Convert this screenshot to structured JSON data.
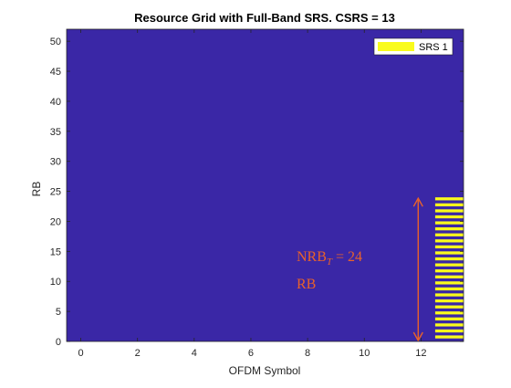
{
  "chart_data": {
    "type": "heatmap",
    "title": "Resource Grid with Full-Band SRS. CSRS = 13",
    "xlabel": "OFDM Symbol",
    "ylabel": "RB",
    "xlim": [
      -0.5,
      13.5
    ],
    "ylim": [
      0,
      52
    ],
    "x_ticks": [
      0,
      2,
      4,
      6,
      8,
      10,
      12
    ],
    "y_ticks": [
      0,
      5,
      10,
      15,
      20,
      25,
      30,
      35,
      40,
      45,
      50
    ],
    "background_color": "#3a27a6",
    "series": [
      {
        "name": "SRS 1",
        "color": "#f9fb1c",
        "symbol": 13,
        "rb_start": 0,
        "rb_end": 24,
        "stripe_period_rb": 1
      }
    ],
    "legend": {
      "placement": "top-right",
      "entries": [
        "SRS 1"
      ]
    },
    "annotation": {
      "color": "#e8622b",
      "line1_prefix": "NRB",
      "line1_sub": "T",
      "line1_suffix": " = 24",
      "line2": "RB",
      "arrow_x": 11.9,
      "arrow_from": 0,
      "arrow_to": 24
    }
  }
}
